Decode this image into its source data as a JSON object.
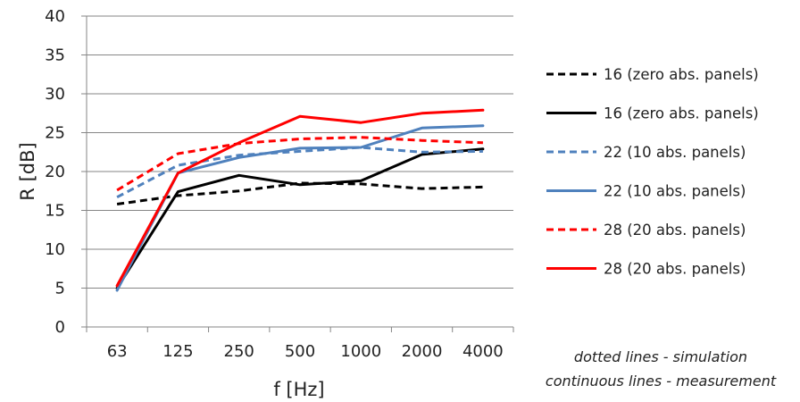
{
  "chart_data": {
    "type": "line",
    "title": "",
    "xlabel": "f [Hz]",
    "ylabel": "R [dB]",
    "categories": [
      "63",
      "125",
      "250",
      "500",
      "1000",
      "2000",
      "4000"
    ],
    "ylim": [
      0,
      40
    ],
    "yticks": [
      "0",
      "5",
      "10",
      "15",
      "20",
      "25",
      "30",
      "35",
      "40"
    ],
    "grid": "horizontal",
    "legend_position": "right",
    "series": [
      {
        "name": "16 (zero abs. panels)",
        "values": [
          15.8,
          16.9,
          17.5,
          18.5,
          18.4,
          17.8,
          18.0
        ],
        "color": "#000000",
        "dashed": true
      },
      {
        "name": "16 (zero abs. panels)",
        "values": [
          5.0,
          17.4,
          19.5,
          18.3,
          18.8,
          22.2,
          22.9
        ],
        "color": "#000000",
        "dashed": false
      },
      {
        "name": "22 (10 abs. panels)",
        "values": [
          16.7,
          20.8,
          22.1,
          22.6,
          23.1,
          22.5,
          22.6
        ],
        "color": "#4F81BD",
        "dashed": true
      },
      {
        "name": "22 (10 abs. panels)",
        "values": [
          4.7,
          19.8,
          21.8,
          23.0,
          23.1,
          25.6,
          25.9
        ],
        "color": "#4F81BD",
        "dashed": false
      },
      {
        "name": "28 (20 abs. panels)",
        "values": [
          17.6,
          22.3,
          23.6,
          24.2,
          24.4,
          24.0,
          23.7
        ],
        "color": "#FF0000",
        "dashed": true
      },
      {
        "name": "28 (20 abs. panels)",
        "values": [
          5.3,
          19.8,
          23.7,
          27.1,
          26.3,
          27.5,
          27.9
        ],
        "color": "#FF0000",
        "dashed": false
      }
    ]
  },
  "notes": {
    "line1": "dotted  lines - simulation",
    "line2": "continuous lines - measurement"
  },
  "colors": {
    "grid": "#868686",
    "axis": "#868686"
  }
}
